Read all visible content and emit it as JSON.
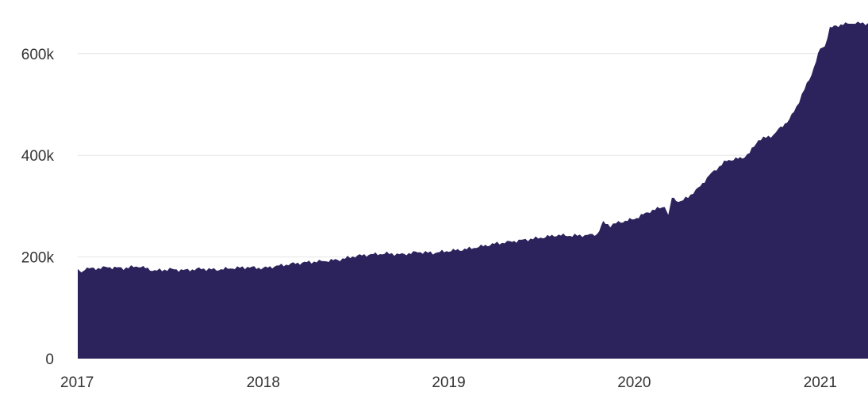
{
  "colors": {
    "area_fill": "#2d235c",
    "grid": "#e6e6e6",
    "tick_text": "#333333",
    "background": "#ffffff"
  },
  "chart_data": {
    "type": "area",
    "title": "",
    "xlabel": "",
    "ylabel": "",
    "grid": "horizontal",
    "legend": "none",
    "x_range": [
      "2017-01-01",
      "2021-04-05"
    ],
    "ylim": [
      0,
      690000
    ],
    "x_ticks": [
      {
        "value": "2017-01-01",
        "label": "2017"
      },
      {
        "value": "2018-01-01",
        "label": "2018"
      },
      {
        "value": "2019-01-01",
        "label": "2019"
      },
      {
        "value": "2020-01-01",
        "label": "2020"
      },
      {
        "value": "2021-01-01",
        "label": "2021"
      }
    ],
    "y_ticks": [
      {
        "value": 0,
        "label": "0"
      },
      {
        "value": 200000,
        "label": "200k"
      },
      {
        "value": 400000,
        "label": "400k"
      },
      {
        "value": 600000,
        "label": "600k"
      }
    ],
    "series": [
      {
        "x": [
          "2017-01-01",
          "2017-01-08",
          "2017-01-15",
          "2017-02-01",
          "2017-03-01",
          "2017-04-01",
          "2017-05-01",
          "2017-06-01",
          "2017-07-01",
          "2017-08-01",
          "2017-09-01",
          "2017-10-01",
          "2017-11-01",
          "2017-12-01",
          "2018-01-01",
          "2018-02-01",
          "2018-03-01",
          "2018-04-01",
          "2018-05-01",
          "2018-06-01",
          "2018-07-01",
          "2018-08-01",
          "2018-09-01",
          "2018-10-01",
          "2018-11-01",
          "2018-12-01",
          "2019-01-01",
          "2019-02-01",
          "2019-03-01",
          "2019-04-01",
          "2019-05-01",
          "2019-06-01",
          "2019-07-01",
          "2019-08-01",
          "2019-09-01",
          "2019-10-01",
          "2019-10-20",
          "2019-11-01",
          "2019-11-15",
          "2019-12-01",
          "2020-01-01",
          "2020-02-01",
          "2020-03-01",
          "2020-03-08",
          "2020-03-15",
          "2020-04-01",
          "2020-05-01",
          "2020-06-01",
          "2020-07-01",
          "2020-08-01",
          "2020-08-15",
          "2020-09-01",
          "2020-10-01",
          "2020-10-15",
          "2020-11-01",
          "2020-11-15",
          "2020-12-01",
          "2020-12-15",
          "2021-01-01",
          "2021-01-10",
          "2021-01-20",
          "2021-02-01",
          "2021-03-01",
          "2021-04-05"
        ],
        "values": [
          175000,
          168000,
          178000,
          177000,
          180000,
          178000,
          182000,
          173000,
          176000,
          174000,
          177000,
          175000,
          178000,
          180000,
          178000,
          183000,
          187000,
          190000,
          192000,
          195000,
          202000,
          205000,
          207000,
          205000,
          210000,
          208000,
          212000,
          215000,
          220000,
          226000,
          230000,
          234000,
          238000,
          243000,
          242000,
          243000,
          245000,
          268000,
          262000,
          268000,
          275000,
          290000,
          300000,
          280000,
          317000,
          308000,
          330000,
          365000,
          390000,
          395000,
          405000,
          430000,
          440000,
          455000,
          470000,
          495000,
          530000,
          560000,
          610000,
          615000,
          650000,
          655000,
          660000,
          660000
        ]
      }
    ]
  }
}
